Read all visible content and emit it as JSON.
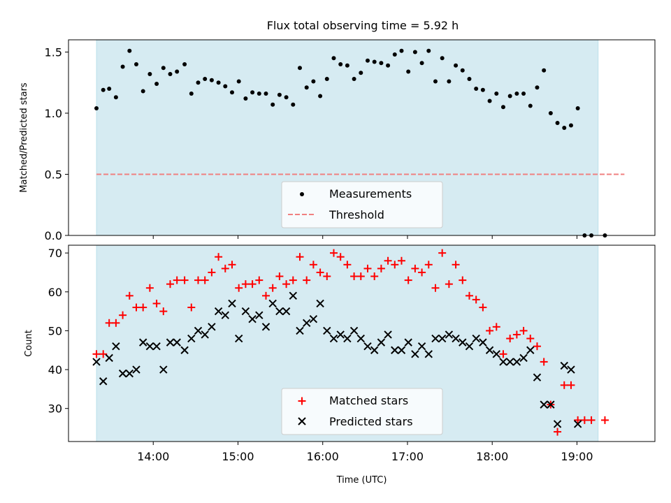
{
  "title": "Flux total observing time = 5.92 h",
  "colors": {
    "span_fill": "#add8e6",
    "threshold": "#f08080",
    "matched": "#ff0000",
    "predicted": "#000000",
    "measurement": "#000000"
  },
  "chart_data": [
    {
      "type": "scatter",
      "title": "Flux total observing time = 5.92 h",
      "xlabel": "",
      "ylabel": "Matched/Predicted stars",
      "x_unit": "hours UTC",
      "xlim": [
        13.0,
        19.92
      ],
      "ylim": [
        0.0,
        1.6
      ],
      "yticks": [
        "0.0",
        "0.5",
        "1.0",
        "1.5"
      ],
      "shaded_span": [
        13.33,
        19.25
      ],
      "legend": {
        "placement": "lower center",
        "entries": [
          "Measurements",
          "Threshold"
        ]
      },
      "threshold": {
        "name": "Threshold",
        "y": 0.5,
        "x_range": [
          13.33,
          19.56
        ],
        "style": "dashed"
      },
      "series": [
        {
          "name": "Measurements",
          "marker": "dot",
          "points": [
            [
              13.33,
              1.04
            ],
            [
              13.41,
              1.19
            ],
            [
              13.48,
              1.2
            ],
            [
              13.56,
              1.13
            ],
            [
              13.64,
              1.38
            ],
            [
              13.72,
              1.51
            ],
            [
              13.8,
              1.4
            ],
            [
              13.88,
              1.18
            ],
            [
              13.96,
              1.32
            ],
            [
              14.04,
              1.24
            ],
            [
              14.12,
              1.37
            ],
            [
              14.2,
              1.32
            ],
            [
              14.28,
              1.34
            ],
            [
              14.37,
              1.4
            ],
            [
              14.45,
              1.16
            ],
            [
              14.53,
              1.25
            ],
            [
              14.61,
              1.28
            ],
            [
              14.69,
              1.27
            ],
            [
              14.77,
              1.25
            ],
            [
              14.85,
              1.22
            ],
            [
              14.93,
              1.17
            ],
            [
              15.01,
              1.26
            ],
            [
              15.09,
              1.12
            ],
            [
              15.17,
              1.17
            ],
            [
              15.25,
              1.16
            ],
            [
              15.33,
              1.16
            ],
            [
              15.41,
              1.07
            ],
            [
              15.49,
              1.15
            ],
            [
              15.57,
              1.13
            ],
            [
              15.65,
              1.07
            ],
            [
              15.73,
              1.37
            ],
            [
              15.81,
              1.21
            ],
            [
              15.89,
              1.26
            ],
            [
              15.97,
              1.14
            ],
            [
              16.05,
              1.28
            ],
            [
              16.13,
              1.45
            ],
            [
              16.21,
              1.4
            ],
            [
              16.29,
              1.39
            ],
            [
              16.37,
              1.28
            ],
            [
              16.45,
              1.33
            ],
            [
              16.53,
              1.43
            ],
            [
              16.61,
              1.42
            ],
            [
              16.69,
              1.41
            ],
            [
              16.77,
              1.39
            ],
            [
              16.85,
              1.48
            ],
            [
              16.93,
              1.51
            ],
            [
              17.01,
              1.34
            ],
            [
              17.09,
              1.5
            ],
            [
              17.17,
              1.41
            ],
            [
              17.25,
              1.51
            ],
            [
              17.33,
              1.26
            ],
            [
              17.41,
              1.45
            ],
            [
              17.49,
              1.26
            ],
            [
              17.57,
              1.39
            ],
            [
              17.65,
              1.35
            ],
            [
              17.73,
              1.28
            ],
            [
              17.81,
              1.2
            ],
            [
              17.89,
              1.19
            ],
            [
              17.97,
              1.1
            ],
            [
              18.05,
              1.16
            ],
            [
              18.13,
              1.05
            ],
            [
              18.21,
              1.14
            ],
            [
              18.29,
              1.16
            ],
            [
              18.37,
              1.16
            ],
            [
              18.45,
              1.06
            ],
            [
              18.53,
              1.21
            ],
            [
              18.61,
              1.35
            ],
            [
              18.69,
              1.0
            ],
            [
              18.77,
              0.92
            ],
            [
              18.85,
              0.88
            ],
            [
              18.93,
              0.9
            ],
            [
              19.01,
              1.04
            ],
            [
              19.09,
              0.0
            ],
            [
              19.17,
              0.0
            ],
            [
              19.33,
              0.0
            ]
          ]
        }
      ]
    },
    {
      "type": "scatter",
      "title": "",
      "xlabel": "Time (UTC)",
      "ylabel": "Count",
      "x_unit": "hours UTC",
      "xlim": [
        13.0,
        19.92
      ],
      "ylim": [
        21.5,
        72.0
      ],
      "yticks": [
        "30",
        "40",
        "50",
        "60",
        "70"
      ],
      "xticks": [
        "14:00",
        "15:00",
        "16:00",
        "17:00",
        "18:00",
        "19:00"
      ],
      "shaded_span": [
        13.33,
        19.25
      ],
      "legend": {
        "placement": "lower center",
        "entries": [
          "Matched stars",
          "Predicted stars"
        ]
      },
      "series": [
        {
          "name": "Matched stars",
          "marker": "plus",
          "points": [
            [
              13.33,
              44
            ],
            [
              13.41,
              44
            ],
            [
              13.48,
              52
            ],
            [
              13.56,
              52
            ],
            [
              13.64,
              54
            ],
            [
              13.72,
              59
            ],
            [
              13.8,
              56
            ],
            [
              13.88,
              56
            ],
            [
              13.96,
              61
            ],
            [
              14.04,
              57
            ],
            [
              14.12,
              55
            ],
            [
              14.2,
              62
            ],
            [
              14.28,
              63
            ],
            [
              14.37,
              63
            ],
            [
              14.45,
              56
            ],
            [
              14.53,
              63
            ],
            [
              14.61,
              63
            ],
            [
              14.69,
              65
            ],
            [
              14.77,
              69
            ],
            [
              14.85,
              66
            ],
            [
              14.93,
              67
            ],
            [
              15.01,
              61
            ],
            [
              15.09,
              62
            ],
            [
              15.17,
              62
            ],
            [
              15.25,
              63
            ],
            [
              15.33,
              59
            ],
            [
              15.41,
              61
            ],
            [
              15.49,
              64
            ],
            [
              15.57,
              62
            ],
            [
              15.65,
              63
            ],
            [
              15.73,
              69
            ],
            [
              15.81,
              63
            ],
            [
              15.89,
              67
            ],
            [
              15.97,
              65
            ],
            [
              16.05,
              64
            ],
            [
              16.13,
              70
            ],
            [
              16.21,
              69
            ],
            [
              16.29,
              67
            ],
            [
              16.37,
              64
            ],
            [
              16.45,
              64
            ],
            [
              16.53,
              66
            ],
            [
              16.61,
              64
            ],
            [
              16.69,
              66
            ],
            [
              16.77,
              68
            ],
            [
              16.85,
              67
            ],
            [
              16.93,
              68
            ],
            [
              17.01,
              63
            ],
            [
              17.09,
              66
            ],
            [
              17.17,
              65
            ],
            [
              17.25,
              67
            ],
            [
              17.33,
              61
            ],
            [
              17.41,
              70
            ],
            [
              17.49,
              62
            ],
            [
              17.57,
              67
            ],
            [
              17.65,
              63
            ],
            [
              17.73,
              59
            ],
            [
              17.81,
              58
            ],
            [
              17.89,
              56
            ],
            [
              17.97,
              50
            ],
            [
              18.05,
              51
            ],
            [
              18.13,
              44
            ],
            [
              18.21,
              48
            ],
            [
              18.29,
              49
            ],
            [
              18.37,
              50
            ],
            [
              18.45,
              48
            ],
            [
              18.53,
              46
            ],
            [
              18.61,
              42
            ],
            [
              18.69,
              31
            ],
            [
              18.77,
              24
            ],
            [
              18.85,
              36
            ],
            [
              18.93,
              36
            ],
            [
              19.01,
              27
            ],
            [
              19.09,
              27
            ],
            [
              19.17,
              27
            ],
            [
              19.33,
              27
            ]
          ]
        },
        {
          "name": "Predicted stars",
          "marker": "x",
          "points": [
            [
              13.33,
              42
            ],
            [
              13.41,
              37
            ],
            [
              13.48,
              43
            ],
            [
              13.56,
              46
            ],
            [
              13.64,
              39
            ],
            [
              13.72,
              39
            ],
            [
              13.8,
              40
            ],
            [
              13.88,
              47
            ],
            [
              13.96,
              46
            ],
            [
              14.04,
              46
            ],
            [
              14.12,
              40
            ],
            [
              14.2,
              47
            ],
            [
              14.28,
              47
            ],
            [
              14.37,
              45
            ],
            [
              14.45,
              48
            ],
            [
              14.53,
              50
            ],
            [
              14.61,
              49
            ],
            [
              14.69,
              51
            ],
            [
              14.77,
              55
            ],
            [
              14.85,
              54
            ],
            [
              14.93,
              57
            ],
            [
              15.01,
              48
            ],
            [
              15.09,
              55
            ],
            [
              15.17,
              53
            ],
            [
              15.25,
              54
            ],
            [
              15.33,
              51
            ],
            [
              15.41,
              57
            ],
            [
              15.49,
              55
            ],
            [
              15.57,
              55
            ],
            [
              15.65,
              59
            ],
            [
              15.73,
              50
            ],
            [
              15.81,
              52
            ],
            [
              15.89,
              53
            ],
            [
              15.97,
              57
            ],
            [
              16.05,
              50
            ],
            [
              16.13,
              48
            ],
            [
              16.21,
              49
            ],
            [
              16.29,
              48
            ],
            [
              16.37,
              50
            ],
            [
              16.45,
              48
            ],
            [
              16.53,
              46
            ],
            [
              16.61,
              45
            ],
            [
              16.69,
              47
            ],
            [
              16.77,
              49
            ],
            [
              16.85,
              45
            ],
            [
              16.93,
              45
            ],
            [
              17.01,
              47
            ],
            [
              17.09,
              44
            ],
            [
              17.17,
              46
            ],
            [
              17.25,
              44
            ],
            [
              17.33,
              48
            ],
            [
              17.41,
              48
            ],
            [
              17.49,
              49
            ],
            [
              17.57,
              48
            ],
            [
              17.65,
              47
            ],
            [
              17.73,
              46
            ],
            [
              17.81,
              48
            ],
            [
              17.89,
              47
            ],
            [
              17.97,
              45
            ],
            [
              18.05,
              44
            ],
            [
              18.13,
              42
            ],
            [
              18.21,
              42
            ],
            [
              18.29,
              42
            ],
            [
              18.37,
              43
            ],
            [
              18.45,
              45
            ],
            [
              18.53,
              38
            ],
            [
              18.61,
              31
            ],
            [
              18.69,
              31
            ],
            [
              18.77,
              26
            ],
            [
              18.85,
              41
            ],
            [
              18.93,
              40
            ],
            [
              19.01,
              26
            ]
          ]
        }
      ]
    }
  ]
}
